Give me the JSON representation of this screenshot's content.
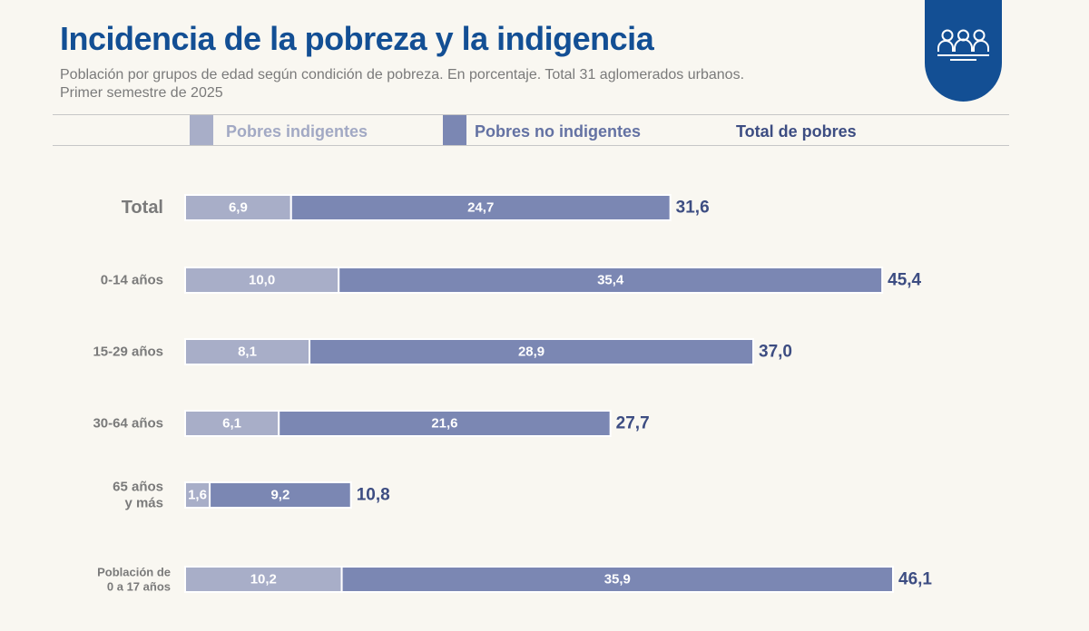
{
  "header": {
    "title": "Incidencia de la pobreza y la indigencia",
    "subtitle_line1": "Población por grupos de edad según condición de pobreza. En porcentaje. Total 31 aglomerados urbanos.",
    "subtitle_line2": "Primer semestre de 2025",
    "badge_icon": "people-group-icon"
  },
  "legend": {
    "indigentes": "Pobres indigentes",
    "no_indigentes": "Pobres no indigentes",
    "total": "Total de pobres"
  },
  "colors": {
    "indigentes": "#a8aec8",
    "no_indigentes": "#7b87b3",
    "total_text": "#3d4d82",
    "legend_indigentes_text": "#a2a9c4",
    "legend_no_indigentes_text": "#6472a3",
    "title": "#134f94"
  },
  "chart_data": {
    "type": "bar",
    "orientation": "horizontal",
    "stacked": true,
    "categories": [
      [
        "Total"
      ],
      [
        "0-14 años"
      ],
      [
        "15-29 años"
      ],
      [
        "30-64 años"
      ],
      [
        "65 años",
        "y más"
      ],
      [
        "Población de",
        "0 a 17 años"
      ]
    ],
    "series": [
      {
        "name": "Pobres indigentes",
        "values": [
          6.9,
          10.0,
          8.1,
          6.1,
          1.6,
          10.2
        ],
        "labels": [
          "6,9",
          "10,0",
          "8,1",
          "6,1",
          "1,6",
          "10,2"
        ]
      },
      {
        "name": "Pobres no indigentes",
        "values": [
          24.7,
          35.4,
          28.9,
          21.6,
          9.2,
          35.9
        ],
        "labels": [
          "24,7",
          "35,4",
          "28,9",
          "21,6",
          "9,2",
          "35,9"
        ]
      }
    ],
    "totals": {
      "name": "Total de pobres",
      "values": [
        31.6,
        45.4,
        37.0,
        27.7,
        10.8,
        46.1
      ],
      "labels": [
        "31,6",
        "45,4",
        "37,0",
        "27,7",
        "10,8",
        "46,1"
      ]
    },
    "xlim": [
      0,
      46.1
    ],
    "grid": false,
    "legend_position": "top"
  }
}
